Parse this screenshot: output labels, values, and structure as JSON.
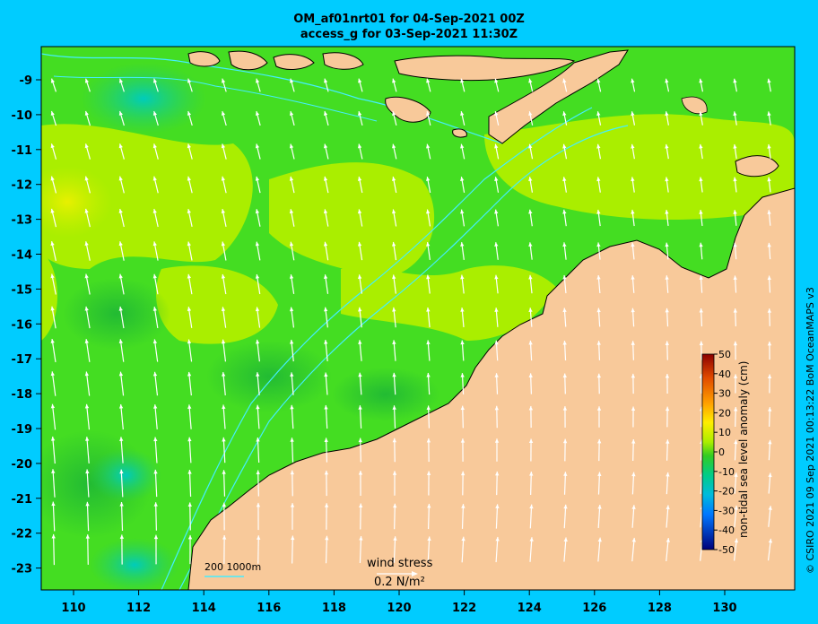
{
  "title": {
    "line1": "OM_af01nrt01 for 04-Sep-2021 00Z",
    "line2": "access_g for 03-Sep-2021 11:30Z"
  },
  "axes": {
    "x_ticks": [
      "110",
      "112",
      "114",
      "116",
      "118",
      "120",
      "122",
      "124",
      "126",
      "128",
      "130"
    ],
    "y_ticks": [
      "-9",
      "-10",
      "-11",
      "-12",
      "-13",
      "-14",
      "-15",
      "-16",
      "-17",
      "-18",
      "-19",
      "-20",
      "-21",
      "-22",
      "-23"
    ]
  },
  "colorbar": {
    "label": "non-tidal sea level anomaly (cm)",
    "ticks": [
      "50",
      "40",
      "30",
      "20",
      "10",
      "0",
      "-10",
      "-20",
      "-30",
      "-40",
      "-50"
    ]
  },
  "legends": {
    "depth_contours": "200  1000m",
    "wind_title": "wind stress",
    "wind_value": "0.2 N/m²"
  },
  "credit": "© CSIRO 2021  09 Sep 2021 00:13:22 BoM OceanMAPS v3",
  "colors": {
    "background": "#00ccff",
    "land": "#f8c99a",
    "sea_green": "#33cc22",
    "sea_yellow_green": "#aaee00",
    "contour": "#44eeff"
  }
}
